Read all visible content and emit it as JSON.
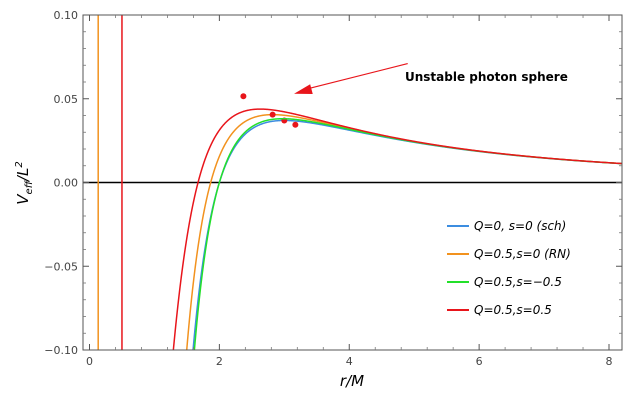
{
  "chart_data": {
    "type": "line",
    "title": "",
    "xlabel": "r/M",
    "ylabel": "V_eff/L^2",
    "xlim": [
      -0.1,
      8.2
    ],
    "ylim": [
      -0.1,
      0.1
    ],
    "xticks": [
      0,
      2,
      4,
      6,
      8
    ],
    "xtick_labels": [
      "0",
      "2",
      "4",
      "6",
      "8"
    ],
    "yticks": [
      -0.1,
      -0.05,
      0.0,
      0.05,
      0.1
    ],
    "ytick_labels": [
      "−0.10",
      "−0.05",
      "0.00",
      "0.05",
      "0.10"
    ],
    "grid": false,
    "legend_position": "lower-right",
    "annotation": {
      "text": "Unstable photon sphere",
      "arrow_from": [
        4.9,
        0.071
      ],
      "arrow_to": [
        3.15,
        0.053
      ],
      "color": "#e8151b"
    },
    "series": [
      {
        "name": "Q=0,   s=0 (sch)",
        "color": "#3c8de0",
        "Q": 0.0,
        "s": 0.0,
        "peak": [
          3.0,
          0.037
        ]
      },
      {
        "name": "Q=0.5,s=0 (RN)",
        "color": "#f2921e",
        "Q": 0.5,
        "s": 0.0,
        "vertical_x": 0.134,
        "peak": [
          2.82,
          0.0405
        ]
      },
      {
        "name": "Q=0.5,s=−0.5",
        "color": "#23e02a",
        "Q": 0.5,
        "s": -0.5,
        "peak": [
          3.17,
          0.0345
        ]
      },
      {
        "name": "Q=0.5,s=0.5",
        "color": "#e8151b",
        "Q": 0.5,
        "s": 0.5,
        "vertical_x": 0.5,
        "peak": [
          2.37,
          0.0515
        ]
      }
    ]
  }
}
